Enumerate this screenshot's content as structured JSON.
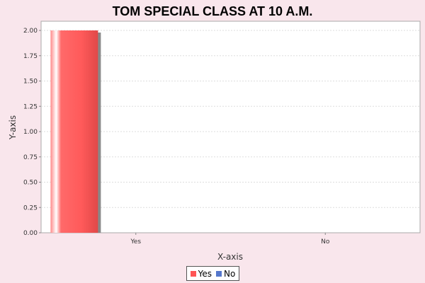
{
  "chart_data": {
    "type": "bar",
    "title": "TOM SPECIAL CLASS AT 10 A.M.",
    "xlabel": "X-axis",
    "ylabel": "Y-axis",
    "categories": [
      "Yes",
      "No"
    ],
    "series": [
      {
        "name": "Yes",
        "color": "#ff5555",
        "values": [
          2,
          0
        ]
      },
      {
        "name": "No",
        "color": "#5577cc",
        "values": [
          0,
          0
        ]
      }
    ],
    "ylim": [
      0,
      2
    ],
    "yticks": [
      "0.00",
      "0.25",
      "0.50",
      "0.75",
      "1.00",
      "1.25",
      "1.50",
      "1.75",
      "2.00"
    ],
    "grid": true,
    "legend_position": "bottom"
  }
}
